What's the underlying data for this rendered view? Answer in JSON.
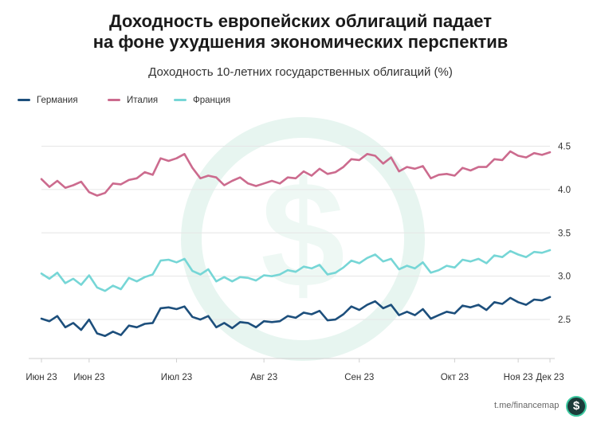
{
  "header": {
    "title_line1": "Доходность европейских облигаций падает",
    "title_line2": "на фоне ухудшения экономических перспектив",
    "subtitle": "Доходность 10-летних государственных облигаций (%)"
  },
  "footer": {
    "source": "t.me/financemap",
    "logo_symbol": "$"
  },
  "colors": {
    "germany": "#1d4f7c",
    "italy": "#cc6b8e",
    "france": "#76d6d6",
    "watermark": "#e7f5f0"
  },
  "chart_data": {
    "type": "line",
    "title": "Доходность европейских облигаций падает на фоне ухудшения экономических перспектив",
    "subtitle": "Доходность 10-летних государственных облигаций (%)",
    "xlabel": "",
    "ylabel": "",
    "ylim": [
      2.05,
      4.9
    ],
    "yticks": [
      2.5,
      3.0,
      3.5,
      4.0,
      4.5
    ],
    "ytick_labels": [
      "2.5",
      "3.0",
      "3.5",
      "4.0",
      "4.5"
    ],
    "xtick_labels": [
      "Июн 23",
      "Июн 23",
      "Июл 23",
      "Авг 23",
      "Сен 23",
      "Окт 23",
      "Ноя 23",
      "Дек 23"
    ],
    "grid": "horizontal",
    "legend_position": "top-left",
    "n_points": 65,
    "series": [
      {
        "name": "Германия",
        "color": "#1d4f7c",
        "values": [
          2.51,
          2.48,
          2.54,
          2.41,
          2.46,
          2.38,
          2.5,
          2.34,
          2.31,
          2.36,
          2.32,
          2.43,
          2.41,
          2.45,
          2.46,
          2.63,
          2.64,
          2.62,
          2.65,
          2.53,
          2.5,
          2.54,
          2.41,
          2.46,
          2.4,
          2.47,
          2.46,
          2.41,
          2.48,
          2.47,
          2.48,
          2.54,
          2.52,
          2.58,
          2.56,
          2.6,
          2.49,
          2.5,
          2.56,
          2.65,
          2.61,
          2.67,
          2.71,
          2.63,
          2.67,
          2.55,
          2.59,
          2.55,
          2.62,
          2.51,
          2.55,
          2.59,
          2.57,
          2.66,
          2.64,
          2.67,
          2.61,
          2.7,
          2.68,
          2.75,
          2.7,
          2.67,
          2.73,
          2.72,
          2.76
        ]
      },
      {
        "name": "Италия",
        "color": "#cc6b8e",
        "values": [
          4.12,
          4.03,
          4.1,
          4.02,
          4.05,
          4.09,
          3.97,
          3.93,
          3.96,
          4.07,
          4.06,
          4.11,
          4.13,
          4.2,
          4.17,
          4.36,
          4.33,
          4.36,
          4.41,
          4.25,
          4.13,
          4.16,
          4.14,
          4.05,
          4.1,
          4.14,
          4.07,
          4.04,
          4.07,
          4.1,
          4.07,
          4.14,
          4.13,
          4.21,
          4.16,
          4.24,
          4.18,
          4.2,
          4.26,
          4.35,
          4.34,
          4.41,
          4.39,
          4.3,
          4.37,
          4.21,
          4.26,
          4.24,
          4.27,
          4.13,
          4.17,
          4.18,
          4.16,
          4.25,
          4.22,
          4.26,
          4.26,
          4.35,
          4.34,
          4.44,
          4.39,
          4.37,
          4.42,
          4.4,
          4.43
        ]
      },
      {
        "name": "Франция",
        "color": "#76d6d6",
        "values": [
          3.03,
          2.97,
          3.04,
          2.92,
          2.97,
          2.9,
          3.01,
          2.87,
          2.83,
          2.89,
          2.85,
          2.98,
          2.94,
          2.99,
          3.02,
          3.18,
          3.19,
          3.16,
          3.2,
          3.06,
          3.02,
          3.08,
          2.94,
          2.99,
          2.94,
          2.99,
          2.98,
          2.95,
          3.01,
          3.0,
          3.02,
          3.07,
          3.05,
          3.11,
          3.09,
          3.13,
          3.02,
          3.04,
          3.1,
          3.18,
          3.15,
          3.21,
          3.25,
          3.17,
          3.2,
          3.08,
          3.12,
          3.09,
          3.16,
          3.04,
          3.07,
          3.12,
          3.1,
          3.19,
          3.17,
          3.2,
          3.15,
          3.24,
          3.22,
          3.29,
          3.25,
          3.22,
          3.28,
          3.27,
          3.3
        ]
      }
    ]
  }
}
